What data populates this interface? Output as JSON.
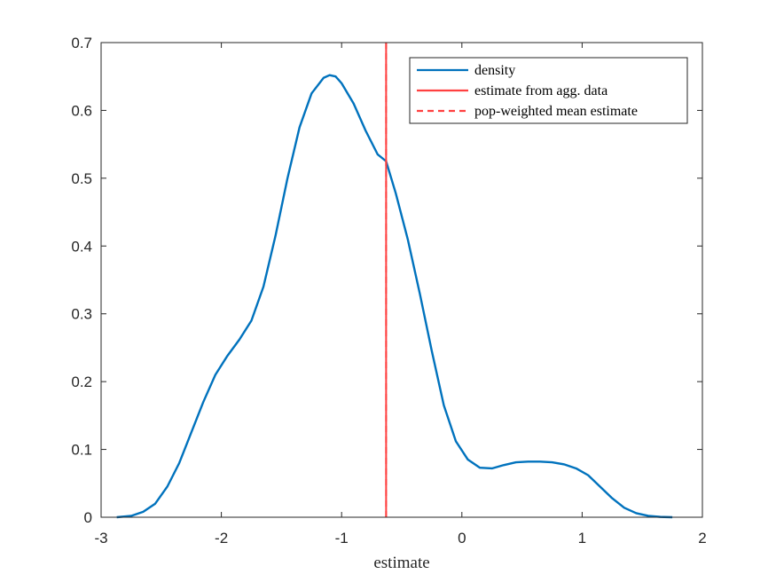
{
  "chart_data": {
    "type": "line",
    "xlabel": "estimate",
    "ylabel": "",
    "title": "",
    "xlim": [
      -3,
      2
    ],
    "ylim": [
      0,
      0.7
    ],
    "xticks": [
      -3,
      -2,
      -1,
      0,
      1,
      2
    ],
    "xtick_labels": [
      "-3",
      "-2",
      "-1",
      "0",
      "1",
      "2"
    ],
    "yticks": [
      0,
      0.1,
      0.2,
      0.3,
      0.4,
      0.5,
      0.6,
      0.7
    ],
    "ytick_labels": [
      "0",
      "0.1",
      "0.2",
      "0.3",
      "0.4",
      "0.5",
      "0.6",
      "0.7"
    ],
    "grid": false,
    "legend_position": "top-right",
    "series": [
      {
        "name": "density",
        "color": "#0072BD",
        "style": "solid",
        "x": [
          -2.87,
          -2.75,
          -2.65,
          -2.55,
          -2.45,
          -2.35,
          -2.25,
          -2.15,
          -2.05,
          -1.95,
          -1.85,
          -1.75,
          -1.65,
          -1.55,
          -1.45,
          -1.35,
          -1.25,
          -1.15,
          -1.1,
          -1.05,
          -1.0,
          -0.9,
          -0.8,
          -0.7,
          -0.63,
          -0.55,
          -0.45,
          -0.35,
          -0.25,
          -0.15,
          -0.05,
          0.05,
          0.15,
          0.25,
          0.35,
          0.45,
          0.55,
          0.65,
          0.75,
          0.85,
          0.95,
          1.05,
          1.15,
          1.25,
          1.35,
          1.45,
          1.55,
          1.65,
          1.75
        ],
        "y": [
          0.0,
          0.002,
          0.008,
          0.02,
          0.045,
          0.08,
          0.125,
          0.17,
          0.21,
          0.238,
          0.262,
          0.29,
          0.34,
          0.415,
          0.5,
          0.575,
          0.625,
          0.648,
          0.652,
          0.65,
          0.64,
          0.61,
          0.57,
          0.535,
          0.525,
          0.478,
          0.41,
          0.33,
          0.245,
          0.165,
          0.112,
          0.085,
          0.073,
          0.072,
          0.077,
          0.081,
          0.082,
          0.082,
          0.081,
          0.078,
          0.072,
          0.062,
          0.045,
          0.028,
          0.014,
          0.006,
          0.002,
          0.0005,
          0.0
        ]
      },
      {
        "name": "estimate from agg. data",
        "color": "#FF4040",
        "style": "solid",
        "x": [
          -0.63,
          -0.63
        ],
        "y": [
          0,
          0.7
        ]
      },
      {
        "name": "pop-weighted mean estimate",
        "color": "#FF4040",
        "style": "dashed",
        "x": [
          -0.63,
          -0.63
        ],
        "y": [
          0,
          0.7
        ]
      }
    ]
  }
}
